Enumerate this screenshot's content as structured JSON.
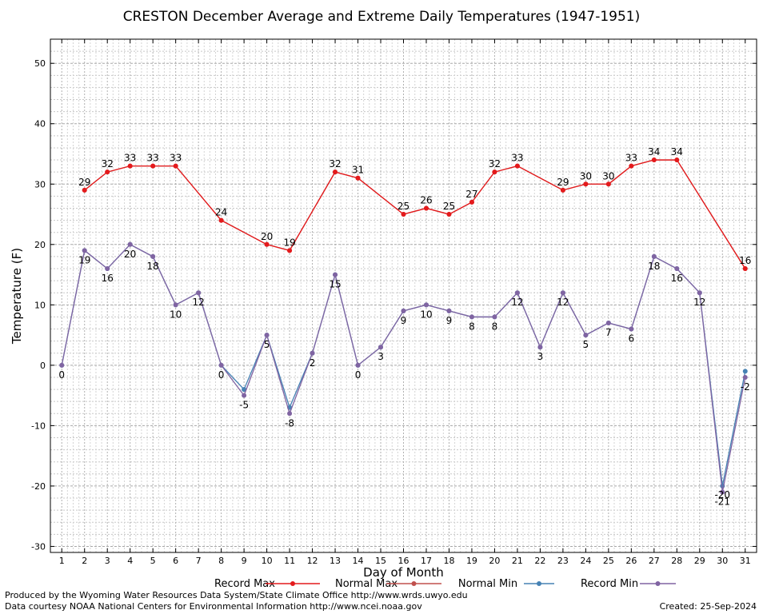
{
  "chart_data": {
    "type": "line",
    "title": "CRESTON December Average and Extreme Daily Temperatures (1947-1951)",
    "xlabel": "Day of Month",
    "ylabel": "Temperature (F)",
    "xlim": [
      0.5,
      31.5
    ],
    "ylim": [
      -31,
      54
    ],
    "yticks": [
      -30,
      -20,
      -10,
      0,
      10,
      20,
      30,
      40,
      50
    ],
    "x": [
      1,
      2,
      3,
      4,
      5,
      6,
      7,
      8,
      9,
      10,
      11,
      12,
      13,
      14,
      15,
      16,
      17,
      18,
      19,
      20,
      21,
      22,
      23,
      24,
      25,
      26,
      27,
      28,
      29,
      30,
      31
    ],
    "grid": true,
    "legend_position": "bottom",
    "series": [
      {
        "name": "Record Max",
        "color": "#e41a1c",
        "points": [
          [
            2,
            29
          ],
          [
            3,
            32
          ],
          [
            4,
            33
          ],
          [
            5,
            33
          ],
          [
            6,
            33
          ],
          [
            8,
            24
          ],
          [
            10,
            20
          ],
          [
            11,
            19
          ],
          [
            13,
            32
          ],
          [
            14,
            31
          ],
          [
            16,
            25
          ],
          [
            17,
            26
          ],
          [
            18,
            25
          ],
          [
            19,
            27
          ],
          [
            20,
            32
          ],
          [
            21,
            33
          ],
          [
            23,
            29
          ],
          [
            24,
            30
          ],
          [
            25,
            30
          ],
          [
            26,
            33
          ],
          [
            27,
            34
          ],
          [
            28,
            34
          ],
          [
            31,
            16
          ]
        ]
      },
      {
        "name": "Normal Max",
        "color": "#c0504d",
        "points": [
          [
            2,
            29
          ],
          [
            3,
            32
          ],
          [
            4,
            33
          ],
          [
            5,
            33
          ],
          [
            6,
            33
          ],
          [
            8,
            24
          ],
          [
            10,
            20
          ],
          [
            11,
            19
          ],
          [
            13,
            32
          ],
          [
            14,
            31
          ],
          [
            16,
            25
          ],
          [
            17,
            26
          ],
          [
            18,
            25
          ],
          [
            19,
            27
          ],
          [
            20,
            32
          ],
          [
            21,
            33
          ],
          [
            23,
            29
          ],
          [
            24,
            30
          ],
          [
            25,
            30
          ],
          [
            26,
            33
          ],
          [
            27,
            34
          ],
          [
            28,
            34
          ],
          [
            31,
            16
          ]
        ]
      },
      {
        "name": "Normal Min",
        "color": "#4682b4",
        "points": [
          [
            1,
            0
          ],
          [
            2,
            19
          ],
          [
            3,
            16
          ],
          [
            4,
            20
          ],
          [
            5,
            18
          ],
          [
            6,
            10
          ],
          [
            7,
            12
          ],
          [
            8,
            0
          ],
          [
            9,
            -4
          ],
          [
            10,
            5
          ],
          [
            11,
            -7
          ],
          [
            12,
            2
          ],
          [
            13,
            15
          ],
          [
            14,
            0
          ],
          [
            15,
            3
          ],
          [
            16,
            9
          ],
          [
            17,
            10
          ],
          [
            18,
            9
          ],
          [
            19,
            8
          ],
          [
            20,
            8
          ],
          [
            21,
            12
          ],
          [
            22,
            3
          ],
          [
            23,
            12
          ],
          [
            24,
            5
          ],
          [
            25,
            7
          ],
          [
            26,
            6
          ],
          [
            27,
            18
          ],
          [
            28,
            16
          ],
          [
            29,
            12
          ],
          [
            30,
            -20
          ],
          [
            31,
            -1
          ]
        ]
      },
      {
        "name": "Record Min",
        "color": "#8064a2",
        "points": [
          [
            1,
            0
          ],
          [
            2,
            19
          ],
          [
            3,
            16
          ],
          [
            4,
            20
          ],
          [
            5,
            18
          ],
          [
            6,
            10
          ],
          [
            7,
            12
          ],
          [
            8,
            0
          ],
          [
            9,
            -5
          ],
          [
            10,
            5
          ],
          [
            11,
            -8
          ],
          [
            12,
            2
          ],
          [
            13,
            15
          ],
          [
            14,
            0
          ],
          [
            15,
            3
          ],
          [
            16,
            9
          ],
          [
            17,
            10
          ],
          [
            18,
            9
          ],
          [
            19,
            8
          ],
          [
            20,
            8
          ],
          [
            21,
            12
          ],
          [
            22,
            3
          ],
          [
            23,
            12
          ],
          [
            24,
            5
          ],
          [
            25,
            7
          ],
          [
            26,
            6
          ],
          [
            27,
            18
          ],
          [
            28,
            16
          ],
          [
            29,
            12
          ],
          [
            30,
            -21
          ],
          [
            31,
            -2
          ]
        ]
      }
    ],
    "data_labels": {
      "Record Max": [
        "29",
        "32",
        "33",
        "33",
        "33",
        "24",
        "20",
        "19",
        "32",
        "31",
        "25",
        "26",
        "25",
        "27",
        "32",
        "33",
        "29",
        "30",
        "30",
        "33",
        "34",
        "34",
        "16"
      ],
      "Record Min": [
        "0",
        "19",
        "16",
        "20",
        "18",
        "10",
        "12",
        "0",
        "-5",
        "5",
        "-8",
        "2",
        "15",
        "0",
        "3",
        "9",
        "10",
        "9",
        "8",
        "8",
        "12",
        "3",
        "12",
        "5",
        "7",
        "6",
        "18",
        "16",
        "12",
        "-21",
        "-2"
      ],
      "Normal Min extra": [
        {
          "x": 30,
          "label": "-20"
        }
      ]
    }
  },
  "footer": {
    "credit": "Produced by the Wyoming Water Resources Data System/State Climate Office http://www.wrds.uwyo.edu",
    "courtesy": "Data courtesy NOAA National Centers for Environmental Information http://www.ncei.noaa.gov",
    "created": "Created:  25-Sep-2024"
  }
}
